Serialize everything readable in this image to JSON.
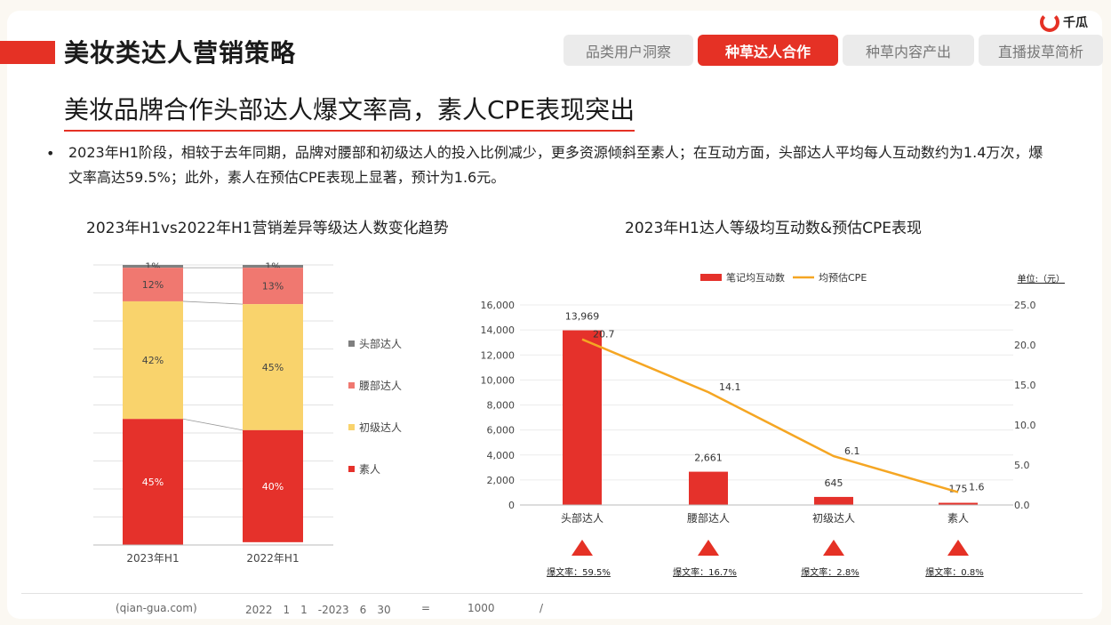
{
  "header": {
    "title": "美妆类达人营销策略",
    "logo_text": "千瓜",
    "tabs": [
      {
        "label": "品类用户洞察",
        "active": false
      },
      {
        "label": "种草达人合作",
        "active": true
      },
      {
        "label": "种草内容产出",
        "active": false
      },
      {
        "label": "直播拔草简析",
        "active": false
      }
    ]
  },
  "subtitle": "美妆品牌合作头部达人爆文率高，素人CPE表现突出",
  "summary": "2023年H1阶段，相较于去年同期，品牌对腰部和初级达人的投入比例减少，更多资源倾斜至素人；在互动方面，头部达人平均每人互动数约为1.4万次，爆文率高达59.5%；此外，素人在预估CPE表现上显著，预计为1.6元。",
  "bullet": "•",
  "left_chart_title": "2023年H1vs2022年H1营销差异等级达人数变化趋势",
  "right_chart_title": "2023年H1达人等级均互动数&预估CPE表现",
  "colors": {
    "accent": "#e53125",
    "head": "#7f7f7f",
    "waist": "#f07870",
    "junior": "#f9d36c",
    "amateur": "#e5312b",
    "cpe_line": "#f5a623"
  },
  "chart_data": [
    {
      "type": "bar",
      "stacked": true,
      "percent": true,
      "categories": [
        "2023年H1",
        "2022年H1"
      ],
      "series": [
        {
          "name": "素人",
          "values": [
            45,
            40
          ],
          "labels": [
            "45%",
            "40%"
          ],
          "color": "#e5312b"
        },
        {
          "name": "初级达人",
          "values": [
            42,
            45
          ],
          "labels": [
            "42%",
            "45%"
          ],
          "color": "#f9d36c"
        },
        {
          "name": "腰部达人",
          "values": [
            12,
            13
          ],
          "labels": [
            "12%",
            "13%"
          ],
          "color": "#f07870"
        },
        {
          "name": "头部达人",
          "values": [
            1,
            1
          ],
          "labels": [
            "1%",
            "1%"
          ],
          "color": "#7f7f7f"
        }
      ],
      "legend": [
        "头部达人",
        "腰部达人",
        "初级达人",
        "素人"
      ],
      "legend_placement": "right",
      "grid": true
    },
    {
      "type": "bar",
      "categories": [
        "头部达人",
        "腰部达人",
        "初级达人",
        "素人"
      ],
      "series": [
        {
          "name": "笔记均互动数",
          "type": "bar",
          "axis": "left",
          "values": [
            13969,
            2661,
            645,
            175
          ],
          "labels": [
            "13,969",
            "2,661",
            "645",
            "175"
          ],
          "color": "#e5312b"
        },
        {
          "name": "均预估CPE",
          "type": "line",
          "axis": "right",
          "values": [
            20.7,
            14.1,
            6.1,
            1.6
          ],
          "labels": [
            "20.7",
            "14.1",
            "6.1",
            "1.6"
          ],
          "color": "#f5a623"
        }
      ],
      "ylim": [
        0,
        16000
      ],
      "y_ticks": [
        "0",
        "2,000",
        "4,000",
        "6,000",
        "8,000",
        "10,000",
        "12,000",
        "14,000",
        "16,000"
      ],
      "y2lim": [
        0,
        25
      ],
      "y2_ticks": [
        "0.0",
        "5.0",
        "10.0",
        "15.0",
        "20.0",
        "25.0"
      ],
      "unit_label": "单位:（元）",
      "legend_placement": "top",
      "grid": true,
      "explosion_rates": [
        "爆文率：59.5%",
        "爆文率：16.7%",
        "爆文率：2.8%",
        "爆文率：0.8%"
      ]
    }
  ],
  "footer": {
    "source": "(qian-gua.com)",
    "period": "2022　1　1　-2023　6　30",
    "eq": "=",
    "num": "1000",
    "slash": "/"
  }
}
